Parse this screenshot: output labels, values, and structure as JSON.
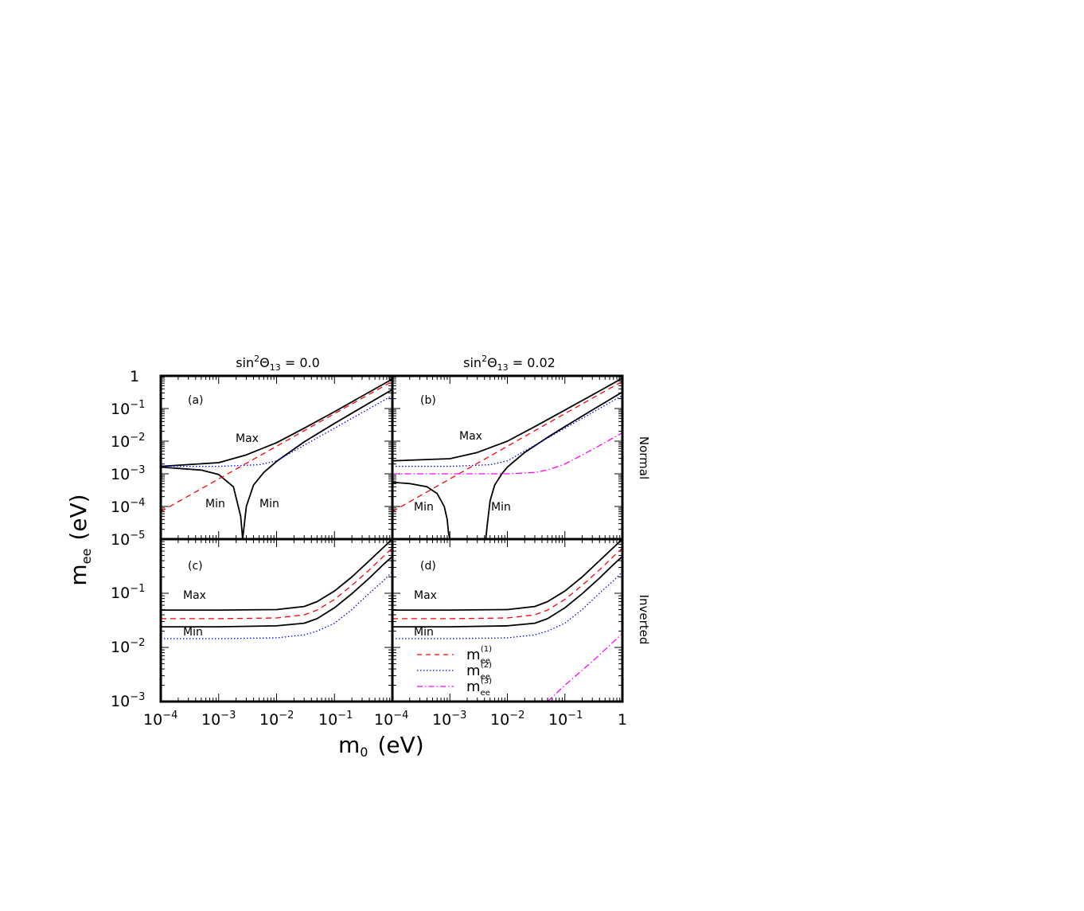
{
  "figure": {
    "y_axis_label": "m",
    "y_axis_label_sub": "ee",
    "y_axis_label_unit": "(eV)",
    "x_axis_label": "m",
    "x_axis_label_sub": "0",
    "x_axis_label_unit": "(eV)",
    "column_titles": [
      {
        "prefix": "sin",
        "sup": "2",
        "mid": "Θ",
        "sub": "13",
        "suffix": " = 0.0"
      },
      {
        "prefix": "sin",
        "sup": "2",
        "mid": "Θ",
        "sub": "13",
        "suffix": " = 0.02"
      }
    ],
    "row_labels": [
      "Normal",
      "Inverted"
    ],
    "legend": [
      {
        "base": "m",
        "sub": "ee",
        "sup": "(1)",
        "color": "#ff0000",
        "style": "dashed"
      },
      {
        "base": "m",
        "sub": "ee",
        "sup": "(2)",
        "color": "#0000ff",
        "style": "dotted"
      },
      {
        "base": "m",
        "sub": "ee",
        "sup": "(3)",
        "color": "#ff00ff",
        "style": "dashdot"
      }
    ],
    "x_tick_labels": [
      {
        "base": "10",
        "exp": "−4"
      },
      {
        "base": "10",
        "exp": "−3"
      },
      {
        "base": "10",
        "exp": "−2"
      },
      {
        "base": "10",
        "exp": "−1"
      },
      {
        "base": "1",
        "exp": ""
      }
    ],
    "y_tick_labels_top": [
      {
        "base": "1",
        "exp": ""
      },
      {
        "base": "10",
        "exp": "−1"
      },
      {
        "base": "10",
        "exp": "−2"
      },
      {
        "base": "10",
        "exp": "−3"
      },
      {
        "base": "10",
        "exp": "−4"
      },
      {
        "base": "10",
        "exp": "−5"
      }
    ],
    "y_tick_labels_bottom": [
      {
        "base": "10",
        "exp": "−1"
      },
      {
        "base": "10",
        "exp": "−2"
      },
      {
        "base": "10",
        "exp": "−3"
      }
    ]
  },
  "chart_data": [
    {
      "type": "line",
      "panel": "(a)",
      "row": "Normal",
      "title": "sin²Θ13 = 0.0",
      "x_scale": "log",
      "y_scale": "log",
      "xlim": [
        0.0001,
        1
      ],
      "ylim": [
        1e-05,
        1
      ],
      "annotations": [
        "Max",
        "Min",
        "Min"
      ],
      "series": [
        {
          "label": "Max",
          "color": "#000000",
          "style": "solid",
          "x": [
            0.0001,
            0.001,
            0.003,
            0.01,
            0.03,
            0.1,
            0.3,
            1
          ],
          "y": [
            0.0017,
            0.0022,
            0.0038,
            0.009,
            0.025,
            0.08,
            0.24,
            0.8
          ]
        },
        {
          "label": "Min",
          "color": "#000000",
          "style": "solid",
          "x": [
            0.0001,
            0.0005,
            0.001,
            0.0018,
            0.0024,
            0.0026,
            0.003,
            0.004,
            0.006,
            0.01,
            0.03,
            0.1,
            0.3,
            1
          ],
          "y": [
            0.0016,
            0.0013,
            0.00095,
            0.0004,
            5e-05,
            1e-05,
            0.0001,
            0.00045,
            0.0011,
            0.0024,
            0.0095,
            0.035,
            0.11,
            0.38
          ]
        },
        {
          "name": "m_ee^(1)",
          "color": "#ff0000",
          "style": "dashed",
          "x": [
            0.0001,
            0.001,
            0.01,
            0.1,
            1
          ],
          "y": [
            7e-05,
            0.0007,
            0.007,
            0.07,
            0.68
          ]
        },
        {
          "name": "m_ee^(2)",
          "color": "#0000ff",
          "style": "dotted",
          "x": [
            0.0001,
            0.001,
            0.005,
            0.01,
            0.03,
            0.1,
            0.3,
            1
          ],
          "y": [
            0.0017,
            0.0017,
            0.0019,
            0.0025,
            0.0075,
            0.025,
            0.075,
            0.25
          ]
        }
      ]
    },
    {
      "type": "line",
      "panel": "(b)",
      "row": "Normal",
      "title": "sin²Θ13 = 0.02",
      "x_scale": "log",
      "y_scale": "log",
      "xlim": [
        0.0001,
        1
      ],
      "ylim": [
        1e-05,
        1
      ],
      "annotations": [
        "Max",
        "Min",
        "Min"
      ],
      "series": [
        {
          "label": "Max",
          "color": "#000000",
          "style": "solid",
          "x": [
            0.0001,
            0.001,
            0.003,
            0.01,
            0.03,
            0.1,
            0.3,
            1
          ],
          "y": [
            0.0025,
            0.0029,
            0.0045,
            0.01,
            0.028,
            0.09,
            0.26,
            0.85
          ]
        },
        {
          "label": "Min",
          "color": "#000000",
          "style": "solid",
          "x": [
            0.0001,
            0.0002,
            0.0004,
            0.0006,
            0.0008,
            0.0009,
            0.00095,
            0.001,
            0.003,
            0.0042,
            0.0045,
            0.005,
            0.006,
            0.008,
            0.01,
            0.02,
            0.05,
            0.1,
            0.3,
            1
          ],
          "y": [
            0.00055,
            0.0005,
            0.0004,
            0.00025,
            0.0001,
            4e-05,
            1.5e-05,
            1e-05,
            1e-05,
            1e-05,
            3e-05,
            0.00015,
            0.00045,
            0.001,
            0.0016,
            0.0045,
            0.013,
            0.028,
            0.09,
            0.32
          ]
        },
        {
          "name": "m_ee^(1)",
          "color": "#ff0000",
          "style": "dashed",
          "x": [
            0.0001,
            0.001,
            0.01,
            0.1,
            1
          ],
          "y": [
            7e-05,
            0.0007,
            0.007,
            0.07,
            0.68
          ]
        },
        {
          "name": "m_ee^(2)",
          "color": "#0000ff",
          "style": "dotted",
          "x": [
            0.0001,
            0.001,
            0.005,
            0.01,
            0.03,
            0.1,
            0.3,
            1
          ],
          "y": [
            0.0017,
            0.0017,
            0.0019,
            0.0025,
            0.0075,
            0.025,
            0.075,
            0.25
          ]
        },
        {
          "name": "m_ee^(3)",
          "color": "#ff00ff",
          "style": "dashdot",
          "x": [
            0.0001,
            0.001,
            0.01,
            0.03,
            0.05,
            0.1,
            0.3,
            1
          ],
          "y": [
            0.001,
            0.001,
            0.001,
            0.0011,
            0.0013,
            0.002,
            0.0055,
            0.018
          ]
        }
      ]
    },
    {
      "type": "line",
      "panel": "(c)",
      "row": "Inverted",
      "title": "sin²Θ13 = 0.0",
      "x_scale": "log",
      "y_scale": "log",
      "xlim": [
        0.0001,
        1
      ],
      "ylim": [
        0.001,
        1
      ],
      "annotations": [
        "Max",
        "Min"
      ],
      "series": [
        {
          "label": "Max",
          "color": "#000000",
          "style": "solid",
          "x": [
            0.0001,
            0.001,
            0.01,
            0.03,
            0.05,
            0.1,
            0.2,
            0.4,
            0.7,
            1
          ],
          "y": [
            0.049,
            0.049,
            0.05,
            0.057,
            0.07,
            0.11,
            0.2,
            0.4,
            0.7,
            1
          ]
        },
        {
          "label": "Min",
          "color": "#000000",
          "style": "solid",
          "x": [
            0.0001,
            0.001,
            0.01,
            0.03,
            0.05,
            0.1,
            0.2,
            0.4,
            0.7,
            1
          ],
          "y": [
            0.024,
            0.024,
            0.025,
            0.028,
            0.034,
            0.054,
            0.098,
            0.19,
            0.34,
            0.48
          ]
        },
        {
          "name": "m_ee^(1)",
          "color": "#ff0000",
          "style": "dashed",
          "x": [
            0.0001,
            0.001,
            0.01,
            0.03,
            0.05,
            0.1,
            0.2,
            0.4,
            0.7,
            1
          ],
          "y": [
            0.034,
            0.034,
            0.035,
            0.04,
            0.049,
            0.077,
            0.14,
            0.27,
            0.48,
            0.68
          ]
        },
        {
          "name": "m_ee^(2)",
          "color": "#0000ff",
          "style": "dotted",
          "x": [
            0.0001,
            0.001,
            0.01,
            0.03,
            0.05,
            0.1,
            0.2,
            0.4,
            0.7,
            1
          ],
          "y": [
            0.0145,
            0.0145,
            0.015,
            0.017,
            0.02,
            0.028,
            0.05,
            0.1,
            0.17,
            0.25
          ]
        },
        {
          "name": "m_ee^(3)",
          "color": "#ff00ff",
          "style": "dashdot",
          "x": [
            0.0001,
            1
          ],
          "y": [
            0.001,
            0.001
          ]
        }
      ]
    },
    {
      "type": "line",
      "panel": "(d)",
      "row": "Inverted",
      "title": "sin²Θ13 = 0.02",
      "x_scale": "log",
      "y_scale": "log",
      "xlim": [
        0.0001,
        1
      ],
      "ylim": [
        0.001,
        1
      ],
      "annotations": [
        "Max",
        "Min"
      ],
      "series": [
        {
          "label": "Max",
          "color": "#000000",
          "style": "solid",
          "x": [
            0.0001,
            0.001,
            0.01,
            0.03,
            0.05,
            0.1,
            0.2,
            0.4,
            0.7,
            1
          ],
          "y": [
            0.049,
            0.049,
            0.05,
            0.057,
            0.07,
            0.11,
            0.2,
            0.4,
            0.7,
            1
          ]
        },
        {
          "label": "Min",
          "color": "#000000",
          "style": "solid",
          "x": [
            0.0001,
            0.001,
            0.01,
            0.03,
            0.05,
            0.1,
            0.2,
            0.4,
            0.7,
            1
          ],
          "y": [
            0.024,
            0.024,
            0.025,
            0.028,
            0.034,
            0.054,
            0.098,
            0.19,
            0.34,
            0.48
          ]
        },
        {
          "name": "m_ee^(1)",
          "color": "#ff0000",
          "style": "dashed",
          "x": [
            0.0001,
            0.001,
            0.01,
            0.03,
            0.05,
            0.1,
            0.2,
            0.4,
            0.7,
            1
          ],
          "y": [
            0.034,
            0.034,
            0.035,
            0.04,
            0.049,
            0.077,
            0.14,
            0.27,
            0.48,
            0.68
          ]
        },
        {
          "name": "m_ee^(2)",
          "color": "#0000ff",
          "style": "dotted",
          "x": [
            0.0001,
            0.001,
            0.01,
            0.03,
            0.05,
            0.1,
            0.2,
            0.4,
            0.7,
            1
          ],
          "y": [
            0.0145,
            0.0145,
            0.015,
            0.017,
            0.02,
            0.028,
            0.05,
            0.1,
            0.17,
            0.25
          ]
        },
        {
          "name": "m_ee^(3)",
          "color": "#ff00ff",
          "style": "dashdot",
          "x": [
            0.05,
            0.1,
            0.3,
            1
          ],
          "y": [
            0.001,
            0.002,
            0.0055,
            0.018
          ]
        }
      ]
    }
  ]
}
